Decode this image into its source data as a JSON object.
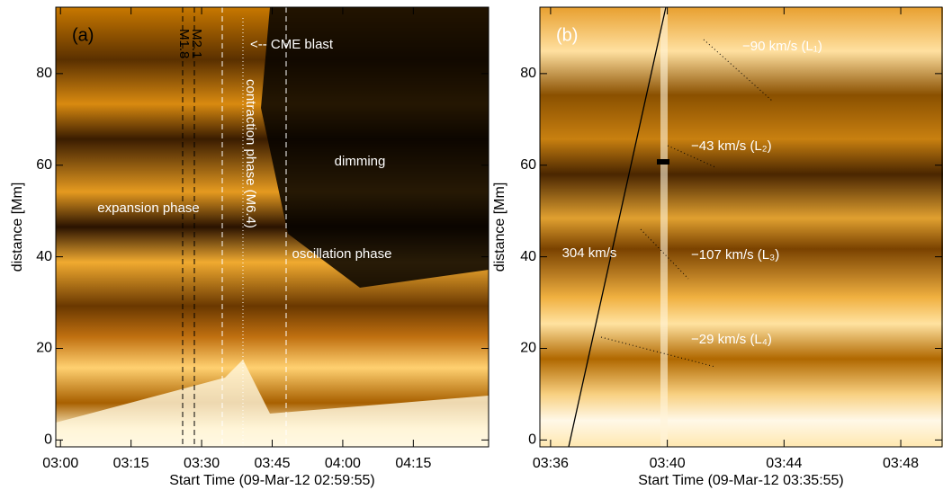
{
  "chart_data": [
    {
      "type": "time-distance",
      "panel": "(a)",
      "xlabel": "Start Time (09-Mar-12 02:59:55)",
      "ylabel": "distance [Mm]",
      "xlim": [
        "02:59",
        "04:31"
      ],
      "xticks": [
        "03:00",
        "03:15",
        "03:30",
        "03:45",
        "04:00",
        "04:15"
      ],
      "ylim": [
        -1.5,
        94.5
      ],
      "yticks": [
        0,
        20,
        40,
        60,
        80
      ],
      "annotations": [
        "<-- CME blast",
        "contraction phase (M6.4)",
        "dimming",
        "expansion phase",
        "oscillation phase",
        "M2.1",
        "M1.8"
      ]
    },
    {
      "type": "time-distance",
      "panel": "(b)",
      "xlabel": "Start Time (09-Mar-12 03:35:55)",
      "ylabel": "distance [Mm]",
      "xlim": [
        "03:35:38",
        "03:49:25"
      ],
      "xticks": [
        "03:36",
        "03:40",
        "03:44",
        "03:48"
      ],
      "ylim": [
        -1.5,
        94.5
      ],
      "yticks": [
        0,
        20,
        40,
        60,
        80
      ],
      "annotations": [
        "304 km/s",
        "−90 km/s (L₁)",
        "−43 km/s (L₂)",
        "−107 km/s (L₃)",
        "−29 km/s (L₄)"
      ]
    }
  ]
}
